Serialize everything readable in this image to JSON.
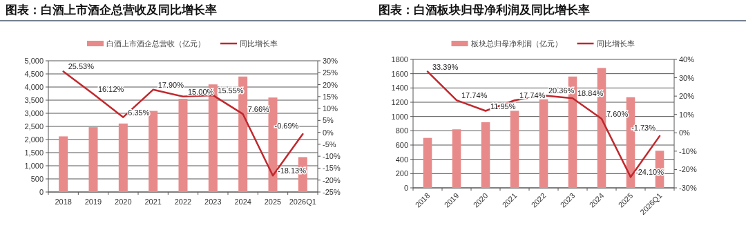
{
  "chart_data": [
    {
      "type": "bar",
      "title": "图表：白酒上市酒企总营收及同比增长率",
      "categories": [
        "2018",
        "2019",
        "2020",
        "2021",
        "2022",
        "2023",
        "2024",
        "2025",
        "2026Q1"
      ],
      "series": [
        {
          "name": "白酒上市酒企总营收（亿元）",
          "color": "#e88a8a",
          "values": [
            2120,
            2470,
            2610,
            3090,
            3550,
            4100,
            4400,
            3600,
            1330
          ]
        },
        {
          "name": "同比增长率",
          "type": "line",
          "axis": "y2",
          "color": "#c0282d",
          "values": [
            25.53,
            16.12,
            6.35,
            17.9,
            15.0,
            15.55,
            7.66,
            -18.13,
            -0.69
          ],
          "value_labels": [
            "25.53%",
            "16.12%",
            "6.35%",
            "17.90%",
            "15.00%",
            "15.55%",
            "7.66%",
            "-18.13%",
            "-0.69%"
          ]
        }
      ],
      "ylim": [
        0,
        5000
      ],
      "yticks": [
        0,
        500,
        {
          "value": 1000,
          "label": "1,000"
        },
        {
          "value": 1500,
          "label": "1,500"
        },
        {
          "value": 2000,
          "label": "2,000"
        },
        {
          "value": 2500,
          "label": "2,500"
        },
        {
          "value": 3000,
          "label": "3,000"
        },
        {
          "value": 3500,
          "label": "3,500"
        },
        {
          "value": 4000,
          "label": "4,000"
        },
        {
          "value": 4500,
          "label": "4,500"
        },
        {
          "value": 5000,
          "label": "5,000"
        }
      ],
      "y2lim": [
        -25,
        30
      ],
      "y2ticks": [
        {
          "value": -25,
          "label": "-25%"
        },
        {
          "value": -20,
          "label": "-20%"
        },
        {
          "value": -15,
          "label": "-15%"
        },
        {
          "value": -10,
          "label": "-10%"
        },
        {
          "value": -5,
          "label": "-5%"
        },
        {
          "value": 0,
          "label": "0%"
        },
        {
          "value": 5,
          "label": "5%"
        },
        {
          "value": 10,
          "label": "10%"
        },
        {
          "value": 15,
          "label": "15%"
        },
        {
          "value": 20,
          "label": "20%"
        },
        {
          "value": 25,
          "label": "25%"
        },
        {
          "value": 30,
          "label": "30%"
        }
      ],
      "grid": "y",
      "legend": "top"
    },
    {
      "type": "bar",
      "title": "图表：白酒板块归母净利润及同比增长率",
      "categories": [
        "2018",
        "2019",
        "2020",
        "2021",
        "2022",
        "2023",
        "2024",
        "2025",
        "2026Q1"
      ],
      "series": [
        {
          "name": "板块总归母净利润（亿元）",
          "color": "#e88a8a",
          "values": [
            700,
            820,
            920,
            1080,
            1240,
            1560,
            1680,
            1270,
            520
          ]
        },
        {
          "name": "同比增长率",
          "type": "line",
          "axis": "y2",
          "color": "#c0282d",
          "values": [
            33.39,
            17.74,
            11.95,
            17.74,
            20.36,
            18.84,
            7.6,
            -24.1,
            -1.73
          ],
          "value_labels": [
            "33.39%",
            "17.74%",
            "11.95%",
            "17.74%",
            "20.36%",
            "18.84%",
            "7.60%",
            "-24.10%",
            "-1.73%"
          ]
        }
      ],
      "ylim": [
        0,
        1800
      ],
      "yticks": [
        0,
        200,
        400,
        600,
        800,
        1000,
        1200,
        1400,
        1600,
        1800
      ],
      "y2lim": [
        -30,
        40
      ],
      "y2ticks": [
        {
          "value": -30,
          "label": "-30%"
        },
        {
          "value": -20,
          "label": "-20%"
        },
        {
          "value": -10,
          "label": "-10%"
        },
        {
          "value": 0,
          "label": "0%"
        },
        {
          "value": 10,
          "label": "10%"
        },
        {
          "value": 20,
          "label": "20%"
        },
        {
          "value": 30,
          "label": "30%"
        },
        {
          "value": 40,
          "label": "40%"
        }
      ],
      "grid": "y",
      "legend": "top"
    }
  ]
}
